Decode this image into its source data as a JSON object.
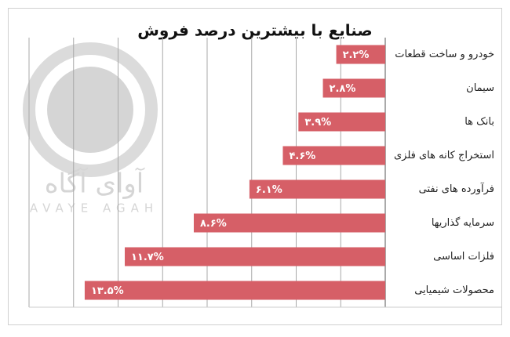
{
  "chart_data": {
    "type": "bar",
    "orientation": "horizontal",
    "title": "صنایع با بیشترین درصد فروش",
    "categories": [
      "خودرو و ساخت قطعات",
      "سیمان",
      "بانک ها",
      "استخراج کانه های فلزی",
      "فرآورده های نفتی",
      "سرمایه گذاریها",
      "فلزات اساسی",
      "محصولات شیمیایی"
    ],
    "values": [
      2.2,
      2.8,
      3.9,
      4.6,
      6.1,
      8.6,
      11.7,
      13.5
    ],
    "value_labels": [
      "۲.۲%",
      "۲.۸%",
      "۳.۹%",
      "۴.۶%",
      "۶.۱%",
      "۸.۶%",
      "۱۱.۷%",
      "۱۳.۵%"
    ],
    "color": "#d65f67",
    "xlim": [
      0,
      16
    ],
    "xticks": [
      0,
      2,
      4,
      6,
      8,
      10,
      12,
      14,
      16
    ],
    "grid": true,
    "reversed": true,
    "annotations": [
      "آوای آگاه",
      "AVAYE AGAH"
    ]
  }
}
